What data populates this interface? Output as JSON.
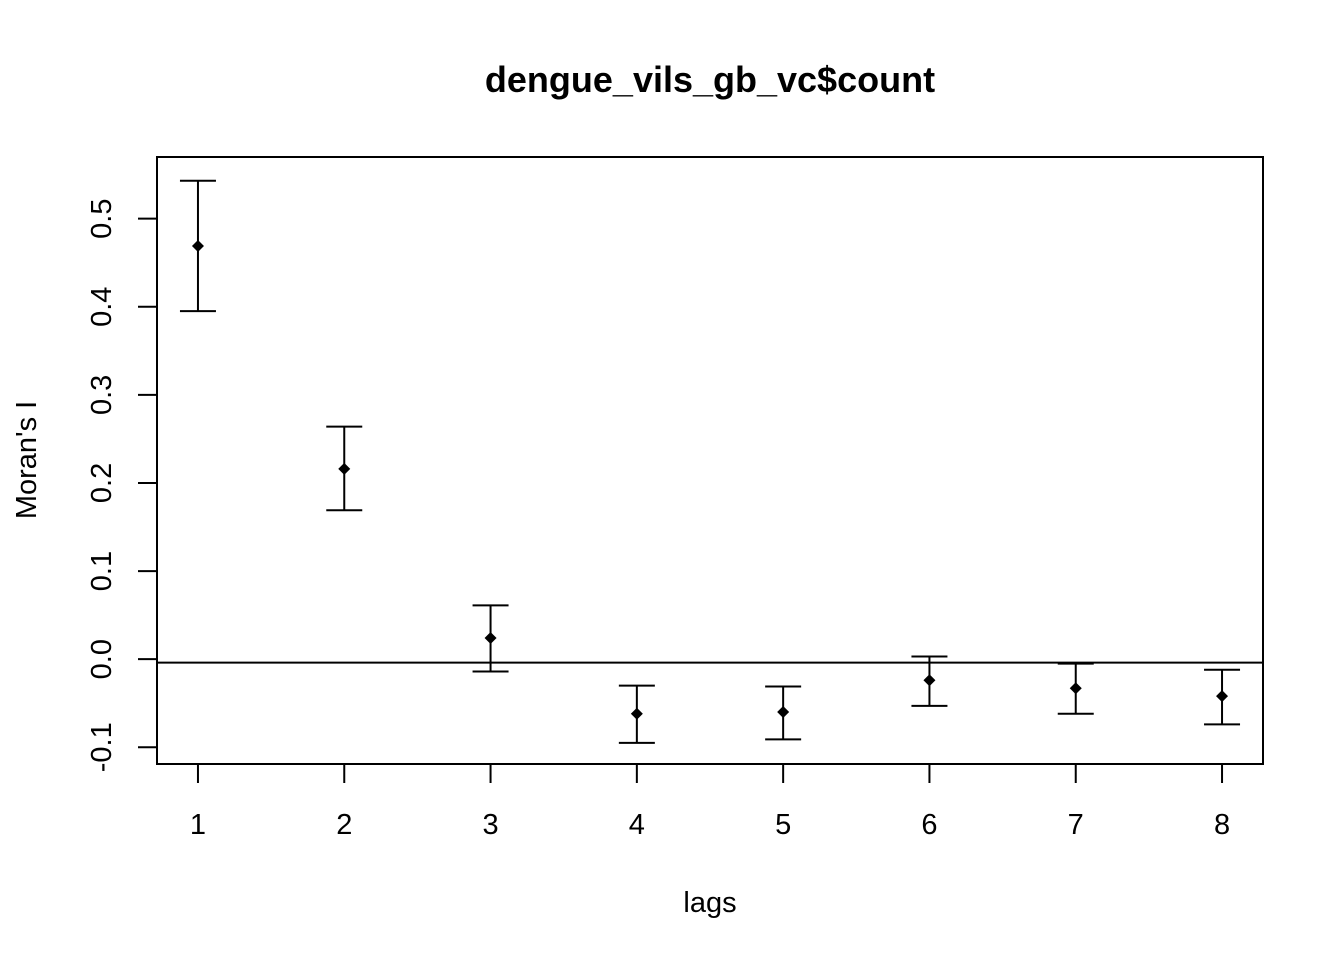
{
  "chart_data": {
    "type": "scatter",
    "title": "dengue_vils_gb_vc$count",
    "xlabel": "lags",
    "ylabel": "Moran's  I",
    "x": [
      1,
      2,
      3,
      4,
      5,
      6,
      7,
      8
    ],
    "series": [
      {
        "values": [
          0.469,
          0.216,
          0.024,
          -0.062,
          -0.06,
          -0.024,
          -0.033,
          -0.042
        ],
        "lower": [
          0.395,
          0.169,
          -0.014,
          -0.095,
          -0.091,
          -0.053,
          -0.062,
          -0.074
        ],
        "upper": [
          0.543,
          0.264,
          0.061,
          -0.03,
          -0.031,
          0.003,
          -0.005,
          -0.012
        ]
      }
    ],
    "reference_line_y": -0.004,
    "xlim": [
      0.72,
      8.28
    ],
    "ylim": [
      -0.119,
      0.57
    ],
    "x_ticks": [
      1,
      2,
      3,
      4,
      5,
      6,
      7,
      8
    ],
    "x_tick_labels": [
      "1",
      "2",
      "3",
      "4",
      "5",
      "6",
      "7",
      "8"
    ],
    "y_ticks": [
      -0.1,
      0.0,
      0.1,
      0.2,
      0.3,
      0.4,
      0.5
    ],
    "y_tick_labels": [
      "-0.1",
      "0.0",
      "0.1",
      "0.2",
      "0.3",
      "0.4",
      "0.5"
    ],
    "marker": "diamond",
    "grid": false,
    "legend": "none",
    "color": "#000000"
  }
}
